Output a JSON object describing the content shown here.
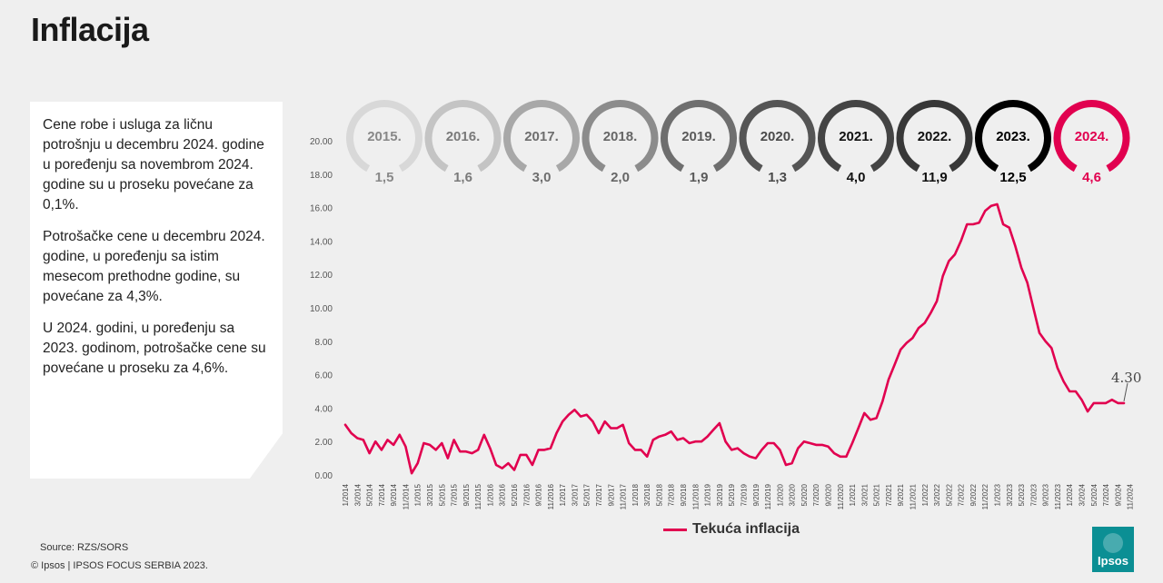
{
  "header": {
    "title": "Inflacija"
  },
  "description": [
    "Cene robe i usluga za ličnu potrošnju u decembru 2024. godine u poređenju sa novembrom 2024. godine su u proseku povećane za 0,1%.",
    "Potrošačke cene u decembru 2024. godine, u poređenju sa istim mesecom prethodne godine, su povećane za 4,3%.",
    "U 2024. godini, u poređenju sa 2023. godinom, potrošačke cene su povećane u proseku za 4,6%."
  ],
  "footer": {
    "source": "Source: RZS/SORS",
    "copyright": "© Ipsos | IPSOS FOCUS SERBIA 2023.",
    "logo": "Ipsos"
  },
  "colors": {
    "series": "#e1004f",
    "logo": "#0b8f94"
  },
  "annual_badges": [
    {
      "year": "2015.",
      "value": "1,5",
      "color": "#d8d8d8",
      "textColor": "#888888"
    },
    {
      "year": "2016.",
      "value": "1,6",
      "color": "#c4c4c4",
      "textColor": "#7a7a7a"
    },
    {
      "year": "2017.",
      "value": "3,0",
      "color": "#a8a8a8",
      "textColor": "#6e6e6e"
    },
    {
      "year": "2018.",
      "value": "2,0",
      "color": "#8c8c8c",
      "textColor": "#666666"
    },
    {
      "year": "2019.",
      "value": "1,9",
      "color": "#6e6e6e",
      "textColor": "#5a5a5a"
    },
    {
      "year": "2020.",
      "value": "1,3",
      "color": "#555555",
      "textColor": "#4a4a4a"
    },
    {
      "year": "2021.",
      "value": "4,0",
      "color": "#444444",
      "textColor": "#111111"
    },
    {
      "year": "2022.",
      "value": "11,9",
      "color": "#383838",
      "textColor": "#111111"
    },
    {
      "year": "2023.",
      "value": "12,5",
      "color": "#000000",
      "textColor": "#000000"
    },
    {
      "year": "2024.",
      "value": "4,6",
      "color": "#e1004f",
      "textColor": "#e1004f"
    }
  ],
  "chart_data": {
    "type": "line",
    "series": [
      {
        "name": "Tekuća inflacija",
        "values": [
          3.0,
          2.5,
          2.2,
          2.1,
          1.3,
          2.0,
          1.5,
          2.1,
          1.8,
          2.4,
          1.7,
          0.1,
          0.7,
          1.9,
          1.8,
          1.5,
          1.9,
          1.0,
          2.1,
          1.4,
          1.4,
          1.3,
          1.5,
          2.4,
          1.6,
          0.6,
          0.4,
          0.7,
          0.3,
          1.2,
          1.2,
          0.6,
          1.5,
          1.5,
          1.6,
          2.5,
          3.2,
          3.6,
          3.9,
          3.5,
          3.6,
          3.2,
          2.5,
          3.2,
          2.8,
          2.8,
          3.0,
          1.9,
          1.5,
          1.5,
          1.1,
          2.1,
          2.3,
          2.4,
          2.6,
          2.1,
          2.2,
          1.9,
          2.0,
          2.0,
          2.3,
          2.7,
          3.1,
          2.0,
          1.5,
          1.6,
          1.3,
          1.1,
          1.0,
          1.5,
          1.9,
          1.9,
          1.5,
          0.6,
          0.7,
          1.6,
          2.0,
          1.9,
          1.8,
          1.8,
          1.7,
          1.3,
          1.1,
          1.1,
          1.9,
          2.8,
          3.7,
          3.3,
          3.4,
          4.4,
          5.7,
          6.6,
          7.5,
          7.9,
          8.2,
          8.8,
          9.1,
          9.7,
          10.4,
          11.9,
          12.8,
          13.2,
          14.0,
          15.0,
          15.0,
          15.1,
          15.8,
          16.1,
          16.2,
          15.0,
          14.8,
          13.7,
          12.4,
          11.5,
          10.0,
          8.5,
          8.0,
          7.6,
          6.4,
          5.6,
          5.0,
          5.0,
          4.5,
          3.8,
          4.3,
          4.3,
          4.3,
          4.5,
          4.3,
          4.3
        ]
      }
    ],
    "x_labels": [
      "1/2014",
      "3/2014",
      "5/2014",
      "7/2014",
      "9/2014",
      "11/2014",
      "1/2015",
      "3/2015",
      "5/2015",
      "7/2015",
      "9/2015",
      "11/2015",
      "1/2016",
      "3/2016",
      "5/2016",
      "7/2016",
      "9/2016",
      "11/2016",
      "1/2017",
      "3/2017",
      "5/2017",
      "7/2017",
      "9/2017",
      "11/2017",
      "1/2018",
      "3/2018",
      "5/2018",
      "7/2018",
      "9/2018",
      "11/2018",
      "1/2019",
      "3/2019",
      "5/2019",
      "7/2019",
      "9/2019",
      "11/2019",
      "1/2020",
      "3/2020",
      "5/2020",
      "7/2020",
      "9/2020",
      "11/2020",
      "1/2021",
      "3/2021",
      "5/2021",
      "7/2021",
      "9/2021",
      "11/2021",
      "1/2022",
      "3/2022",
      "5/2022",
      "7/2022",
      "9/2022",
      "11/2022",
      "1/2023",
      "3/2023",
      "5/2023",
      "7/2023",
      "9/2023",
      "11/2023",
      "1/2024",
      "3/2024",
      "5/2024",
      "7/2024",
      "9/2024",
      "11/2024"
    ],
    "y_ticks": [
      "0.00",
      "2.00",
      "4.00",
      "6.00",
      "8.00",
      "10.00",
      "12.00",
      "14.00",
      "16.00",
      "18.00",
      "20.00"
    ],
    "ylim": [
      0,
      20
    ],
    "annotation": "4.30",
    "legend": "Tekuća inflacija",
    "grid": false
  }
}
